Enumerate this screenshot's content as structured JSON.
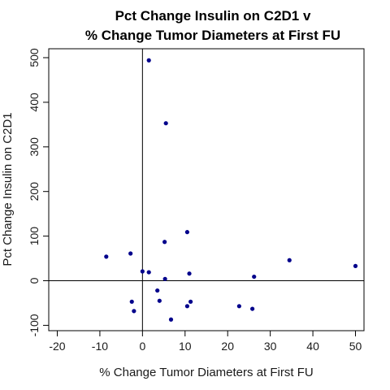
{
  "chart_data": {
    "type": "scatter",
    "title_lines": [
      "Pct Change Insulin on C2D1 v",
      "% Change Tumor Diameters at First FU"
    ],
    "xlabel": "% Change Tumor Diameters at First FU",
    "ylabel": "Pct Change Insulin on C2D1",
    "xlim": [
      -22,
      52
    ],
    "ylim": [
      -112,
      520
    ],
    "x_ticks": [
      -20,
      -10,
      0,
      10,
      20,
      30,
      40,
      50
    ],
    "y_ticks": [
      -100,
      0,
      100,
      200,
      300,
      400,
      500
    ],
    "reference_lines": {
      "x": 0,
      "y": 0
    },
    "point_color": "#00008b",
    "points": [
      {
        "x": 1.5,
        "y": 494
      },
      {
        "x": 5.5,
        "y": 353
      },
      {
        "x": 10.5,
        "y": 109
      },
      {
        "x": 5.2,
        "y": 87
      },
      {
        "x": -8.5,
        "y": 54
      },
      {
        "x": -2.8,
        "y": 61
      },
      {
        "x": 0.0,
        "y": 21
      },
      {
        "x": 1.5,
        "y": 19
      },
      {
        "x": 11.0,
        "y": 16
      },
      {
        "x": 5.3,
        "y": 4
      },
      {
        "x": 34.5,
        "y": 46
      },
      {
        "x": 50.0,
        "y": 33
      },
      {
        "x": 26.2,
        "y": 9
      },
      {
        "x": 3.5,
        "y": -22
      },
      {
        "x": 4.0,
        "y": -45
      },
      {
        "x": -2.5,
        "y": -47
      },
      {
        "x": -2.0,
        "y": -68
      },
      {
        "x": 11.3,
        "y": -47
      },
      {
        "x": 10.5,
        "y": -57
      },
      {
        "x": 22.7,
        "y": -57
      },
      {
        "x": 25.8,
        "y": -63
      },
      {
        "x": 6.7,
        "y": -87
      }
    ]
  }
}
